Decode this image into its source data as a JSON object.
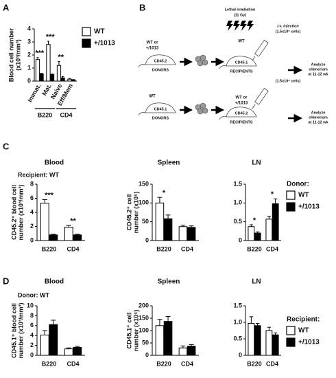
{
  "panel_labels": [
    "A",
    "B",
    "C",
    "D"
  ],
  "diagram": {
    "rows": [
      {
        "donor": [
          "WT or",
          "+/1013"
        ],
        "donor_marker": "CD45.2",
        "donor_label": "DONORS",
        "treatment": [
          "Lethal irradiation",
          "(11 Gy)"
        ],
        "recipient": "WT",
        "recipient_marker": "CD45.1",
        "recipient_label": "RECIPIENTS",
        "injection": [
          "i.v. injection",
          "(1.5x10⁶ cells)"
        ],
        "analysis": [
          "Analyze",
          "chimerism",
          "at 11-12 wk"
        ]
      },
      {
        "donor": [
          "WT"
        ],
        "donor_marker": "CD45.1",
        "donor_label": "DONORS",
        "recipient": [
          "WT or",
          "+/1013"
        ],
        "recipient_marker": "CD45.2",
        "recipient_label": "RECIPIENTS",
        "injection": [
          "(1.5x10⁶ cells)"
        ],
        "analysis": [
          "Analyze",
          "chimerism",
          "at 11-12 wk"
        ]
      }
    ]
  },
  "chart_data": [
    {
      "type": "bar",
      "ylabel": [
        "Blood cell number",
        "(x10³/mm³)"
      ],
      "groups": [
        {
          "label": "B220",
          "categories": [
            "Immat.",
            "Mat."
          ]
        },
        {
          "label": "CD4",
          "categories": [
            "Naive",
            "Eff/Mem"
          ]
        }
      ],
      "series": [
        {
          "name": "WT",
          "color": "#ffffff",
          "values": [
            1.65,
            2.8,
            1.2,
            0.15
          ],
          "errors": [
            0.15,
            0.25,
            0.3,
            0.05
          ]
        },
        {
          "name": "+/1013",
          "color": "#000000",
          "values": [
            0.55,
            0.5,
            0.25,
            0.1
          ],
          "errors": [
            0.05,
            0.05,
            0.1,
            0.02
          ]
        }
      ],
      "significance": [
        "***",
        "***",
        "**",
        null
      ],
      "legend": true,
      "ylim": [
        0,
        4
      ],
      "yticks": [
        0,
        1,
        2,
        3,
        4
      ]
    },
    {
      "type": "bar",
      "title": "Blood",
      "subtitle": "Recipient: WT",
      "ylabel": [
        "CD45.2⁺ blood cell",
        "number (x10³/mm³)"
      ],
      "categories": [
        "B220",
        "CD4"
      ],
      "series": [
        {
          "color": "#ffffff",
          "values": [
            5.3,
            1.9
          ],
          "errors": [
            0.5,
            0.25
          ]
        },
        {
          "color": "#000000",
          "values": [
            0.8,
            0.8
          ],
          "errors": [
            0.1,
            0.1
          ]
        }
      ],
      "significance": [
        "***",
        "**"
      ],
      "ylim": [
        0,
        8
      ],
      "yticks": [
        0,
        2,
        4,
        6,
        8
      ]
    },
    {
      "type": "bar",
      "title": "Spleen",
      "ylabel": [
        "CD45.2⁺ cell",
        "number (x10⁶)"
      ],
      "categories": [
        "B220",
        "CD4"
      ],
      "series": [
        {
          "color": "#ffffff",
          "values": [
            100,
            37
          ],
          "errors": [
            15,
            4
          ]
        },
        {
          "color": "#000000",
          "values": [
            58,
            35
          ],
          "errors": [
            10,
            4
          ]
        }
      ],
      "significance": [
        "*",
        null
      ],
      "ylim": [
        0,
        150
      ],
      "yticks": [
        0,
        50,
        100,
        150
      ]
    },
    {
      "type": "bar",
      "title": "LN",
      "categories": [
        "B220",
        "CD4"
      ],
      "series": [
        {
          "name": "WT",
          "color": "#ffffff",
          "values": [
            0.37,
            0.57
          ],
          "errors": [
            0.05,
            0.08
          ]
        },
        {
          "name": "+/1013",
          "color": "#000000",
          "values": [
            0.2,
            0.98
          ],
          "errors": [
            0.03,
            0.13
          ]
        }
      ],
      "significance": [
        "*",
        "*"
      ],
      "legend": true,
      "legend_title": "Donor:",
      "ylim": [
        0,
        1.5
      ],
      "yticks": [
        0,
        0.5,
        {
          "value": 1,
          "label": "1.0"
        },
        1.5
      ]
    },
    {
      "type": "bar",
      "title": "Blood",
      "subtitle": "Donor: WT",
      "ylabel": [
        "CD45.1⁺ blood cell",
        "number (x10³/mm³)"
      ],
      "categories": [
        "B220",
        "CD4"
      ],
      "series": [
        {
          "color": "#ffffff",
          "values": [
            4.1,
            1.3
          ],
          "errors": [
            0.9,
            0.2
          ]
        },
        {
          "color": "#000000",
          "values": [
            6.2,
            1.6
          ],
          "errors": [
            0.9,
            0.2
          ]
        }
      ],
      "ylim": [
        0,
        10
      ],
      "yticks": [
        0,
        2,
        4,
        6,
        8,
        10
      ]
    },
    {
      "type": "bar",
      "title": "Spleen",
      "ylabel": [
        "CD45.1⁺ cell",
        "number (x10⁶)"
      ],
      "categories": [
        "B220",
        "CD4"
      ],
      "series": [
        {
          "color": "#ffffff",
          "values": [
            120,
            30
          ],
          "errors": [
            25,
            8
          ]
        },
        {
          "color": "#000000",
          "values": [
            137,
            37
          ],
          "errors": [
            20,
            6
          ]
        }
      ],
      "ylim": [
        0,
        200
      ],
      "yticks": [
        0,
        50,
        100,
        150,
        200
      ]
    },
    {
      "type": "bar",
      "title": "LN",
      "categories": [
        "B220",
        "CD4"
      ],
      "series": [
        {
          "name": "WT",
          "color": "#ffffff",
          "values": [
            0.97,
            0.75
          ],
          "errors": [
            0.2,
            0.1
          ]
        },
        {
          "name": "+/1013",
          "color": "#000000",
          "values": [
            0.9,
            0.62
          ],
          "errors": [
            0.07,
            0.06
          ]
        }
      ],
      "legend": true,
      "legend_title": "Recipient:",
      "ylim": [
        0,
        1.5
      ],
      "yticks": [
        0,
        0.5,
        {
          "value": 1,
          "label": "1.0"
        },
        1.5
      ]
    }
  ]
}
